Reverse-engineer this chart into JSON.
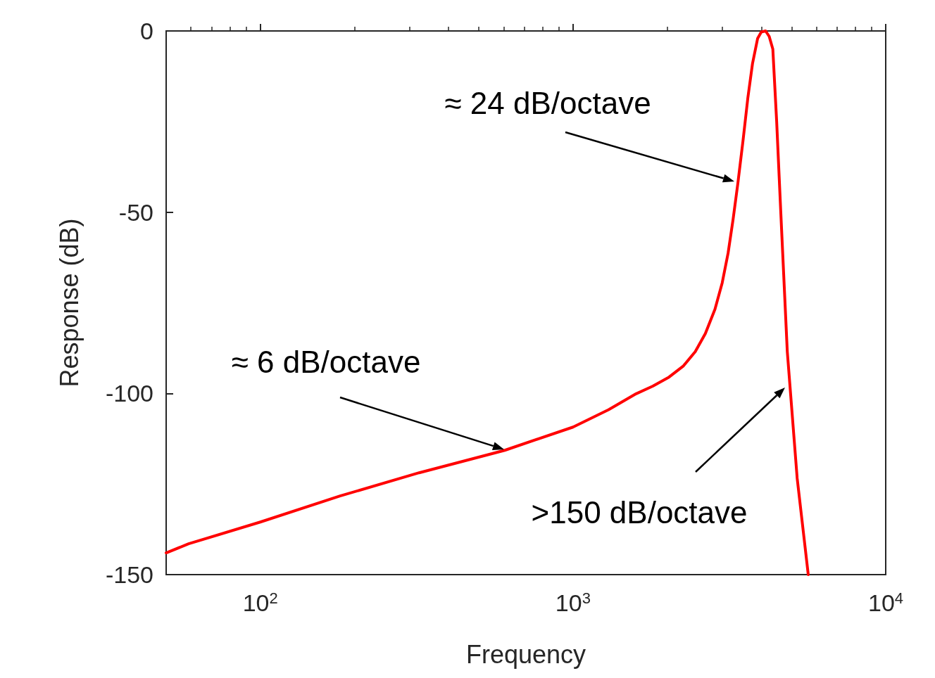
{
  "chart_data": {
    "type": "line",
    "xlabel": "Frequency",
    "ylabel": "Response (dB)",
    "log": "x",
    "marker": "none",
    "line_style": "solid",
    "grid": false,
    "xlim": [
      50,
      10000
    ],
    "xticks": [
      {
        "value": 100,
        "label": "10$^{2}$"
      },
      {
        "value": 1000,
        "label": "10$^{3}$"
      },
      {
        "value": 10000,
        "label": "10$^{4}$"
      }
    ],
    "ylim": [
      -150,
      0
    ],
    "yticks": [
      -150,
      -100,
      -50,
      0
    ],
    "series": [
      {
        "color": "#ff0000",
        "x": [
          50,
          59,
          100,
          180,
          322,
          605,
          1000,
          1300,
          1592,
          1800,
          2028,
          2250,
          2460,
          2650,
          2844,
          3000,
          3133,
          3250,
          3368,
          3500,
          3622,
          3750,
          3893,
          4000,
          4129,
          4240,
          4355,
          4480,
          4616,
          4845,
          5210,
          5653
        ],
        "values": [
          -144,
          -141.5,
          -135.5,
          -128.3,
          -121.9,
          -115.7,
          -109.3,
          -104.5,
          -100.1,
          -98,
          -95.5,
          -92.5,
          -88.5,
          -83.5,
          -76.8,
          -69.5,
          -61.3,
          -52,
          -41.9,
          -30,
          -18.6,
          -9,
          -2.1,
          -0.3,
          0,
          -1.5,
          -5,
          -25,
          -49.7,
          -88.5,
          -123.4,
          -150
        ]
      }
    ],
    "annotations": [
      "≈ 24 dB/octave",
      "≈ 6 dB/octave",
      ">150 dB/octave"
    ]
  }
}
